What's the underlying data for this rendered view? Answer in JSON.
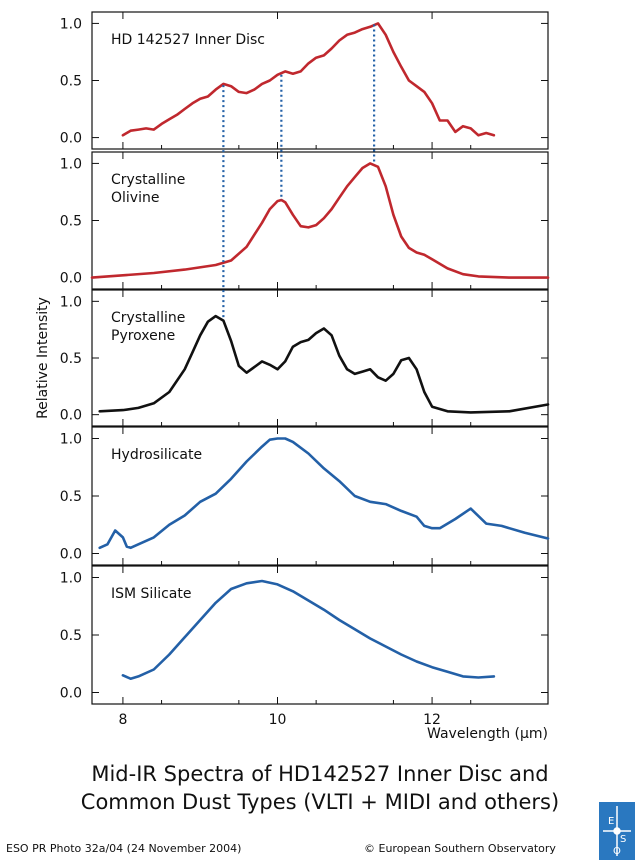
{
  "chart_data": {
    "type": "line",
    "ylabel": "Relative Intensity",
    "xlabel": "Wavelength (µm)",
    "xlim": [
      7.6,
      13.5
    ],
    "x_ticks": [
      "8",
      "10",
      "12"
    ],
    "y_ticks": [
      "0.0",
      "0.5",
      "1.0"
    ],
    "grid": false,
    "panels": [
      {
        "title": "HD 142527 Inner Disc",
        "color": "#c0282e",
        "ylim": [
          -0.1,
          1.1
        ],
        "x": [
          8.0,
          8.1,
          8.2,
          8.3,
          8.4,
          8.5,
          8.6,
          8.7,
          8.8,
          8.9,
          9.0,
          9.1,
          9.2,
          9.3,
          9.4,
          9.5,
          9.6,
          9.7,
          9.8,
          9.9,
          10.0,
          10.1,
          10.2,
          10.3,
          10.4,
          10.5,
          10.6,
          10.7,
          10.8,
          10.9,
          11.0,
          11.1,
          11.2,
          11.3,
          11.4,
          11.5,
          11.6,
          11.7,
          11.8,
          11.9,
          12.0,
          12.1,
          12.2,
          12.3,
          12.4,
          12.5,
          12.6,
          12.7,
          12.8
        ],
        "y": [
          0.02,
          0.06,
          0.07,
          0.08,
          0.07,
          0.12,
          0.16,
          0.2,
          0.25,
          0.3,
          0.34,
          0.36,
          0.42,
          0.47,
          0.45,
          0.4,
          0.39,
          0.42,
          0.47,
          0.5,
          0.55,
          0.58,
          0.56,
          0.58,
          0.65,
          0.7,
          0.72,
          0.78,
          0.85,
          0.9,
          0.92,
          0.95,
          0.97,
          1.0,
          0.9,
          0.75,
          0.62,
          0.5,
          0.45,
          0.4,
          0.3,
          0.15,
          0.15,
          0.05,
          0.1,
          0.08,
          0.02,
          0.04,
          0.02
        ]
      },
      {
        "title_lines": [
          "Crystalline",
          "Olivine"
        ],
        "color": "#c0282e",
        "ylim": [
          -0.1,
          1.1
        ],
        "x": [
          7.6,
          8.0,
          8.4,
          8.8,
          9.2,
          9.4,
          9.6,
          9.8,
          9.9,
          10.0,
          10.05,
          10.1,
          10.2,
          10.3,
          10.4,
          10.5,
          10.6,
          10.7,
          10.8,
          10.9,
          11.0,
          11.1,
          11.2,
          11.3,
          11.4,
          11.5,
          11.6,
          11.7,
          11.8,
          11.9,
          12.0,
          12.2,
          12.4,
          12.6,
          13.0,
          13.5
        ],
        "y": [
          0.0,
          0.02,
          0.04,
          0.07,
          0.11,
          0.15,
          0.27,
          0.48,
          0.6,
          0.67,
          0.68,
          0.66,
          0.55,
          0.45,
          0.44,
          0.46,
          0.52,
          0.6,
          0.7,
          0.8,
          0.88,
          0.96,
          1.0,
          0.97,
          0.8,
          0.55,
          0.36,
          0.26,
          0.22,
          0.2,
          0.16,
          0.08,
          0.03,
          0.01,
          0.0,
          0.0
        ]
      },
      {
        "title_lines": [
          "Crystalline",
          "Pyroxene"
        ],
        "color": "#111111",
        "ylim": [
          -0.1,
          1.1
        ],
        "x": [
          7.7,
          8.0,
          8.2,
          8.4,
          8.6,
          8.8,
          8.9,
          9.0,
          9.1,
          9.2,
          9.3,
          9.4,
          9.5,
          9.6,
          9.7,
          9.8,
          9.9,
          10.0,
          10.1,
          10.2,
          10.3,
          10.4,
          10.5,
          10.6,
          10.7,
          10.8,
          10.9,
          11.0,
          11.1,
          11.2,
          11.3,
          11.4,
          11.5,
          11.6,
          11.7,
          11.8,
          11.9,
          12.0,
          12.2,
          12.5,
          13.0,
          13.5
        ],
        "y": [
          0.03,
          0.04,
          0.06,
          0.1,
          0.2,
          0.4,
          0.55,
          0.7,
          0.82,
          0.87,
          0.83,
          0.65,
          0.43,
          0.37,
          0.42,
          0.47,
          0.44,
          0.4,
          0.47,
          0.6,
          0.64,
          0.66,
          0.72,
          0.76,
          0.7,
          0.52,
          0.4,
          0.36,
          0.38,
          0.4,
          0.33,
          0.3,
          0.36,
          0.48,
          0.5,
          0.4,
          0.2,
          0.07,
          0.03,
          0.02,
          0.03,
          0.09
        ]
      },
      {
        "title": "Hydrosilicate",
        "color": "#2360a7",
        "ylim": [
          -0.1,
          1.1
        ],
        "x": [
          7.7,
          7.8,
          7.9,
          8.0,
          8.05,
          8.1,
          8.2,
          8.4,
          8.6,
          8.8,
          9.0,
          9.2,
          9.4,
          9.6,
          9.8,
          9.9,
          10.0,
          10.1,
          10.2,
          10.4,
          10.6,
          10.8,
          11.0,
          11.2,
          11.4,
          11.6,
          11.8,
          11.9,
          12.0,
          12.1,
          12.3,
          12.5,
          12.7,
          12.9,
          13.2,
          13.5
        ],
        "y": [
          0.05,
          0.08,
          0.2,
          0.14,
          0.06,
          0.05,
          0.08,
          0.14,
          0.25,
          0.33,
          0.45,
          0.52,
          0.65,
          0.8,
          0.93,
          0.99,
          1.0,
          1.0,
          0.97,
          0.87,
          0.74,
          0.63,
          0.5,
          0.45,
          0.43,
          0.37,
          0.32,
          0.24,
          0.22,
          0.22,
          0.3,
          0.39,
          0.26,
          0.24,
          0.18,
          0.13
        ]
      },
      {
        "title": "ISM Silicate",
        "color": "#2360a7",
        "ylim": [
          -0.1,
          1.1
        ],
        "x": [
          8.0,
          8.1,
          8.2,
          8.4,
          8.6,
          8.8,
          9.0,
          9.2,
          9.4,
          9.6,
          9.8,
          10.0,
          10.2,
          10.4,
          10.6,
          10.8,
          11.0,
          11.2,
          11.4,
          11.6,
          11.8,
          12.0,
          12.2,
          12.4,
          12.6,
          12.8
        ],
        "y": [
          0.15,
          0.12,
          0.14,
          0.2,
          0.33,
          0.48,
          0.63,
          0.78,
          0.9,
          0.95,
          0.97,
          0.94,
          0.88,
          0.8,
          0.72,
          0.63,
          0.55,
          0.47,
          0.4,
          0.33,
          0.27,
          0.22,
          0.18,
          0.14,
          0.13,
          0.14
        ]
      }
    ],
    "marker_lines": [
      {
        "x": 9.3,
        "from_panel": 0,
        "to_panel": 2,
        "y_from": 0.46,
        "y_to": 0.85
      },
      {
        "x": 10.05,
        "from_panel": 0,
        "to_panel": 1,
        "y_from": 0.55,
        "y_to": 0.68
      },
      {
        "x": 11.25,
        "from_panel": 0,
        "to_panel": 1,
        "y_from": 0.99,
        "y_to": 1.0
      }
    ],
    "marker_color": "#2360a7"
  },
  "caption": {
    "line1": "Mid-IR  Spectra of HD142527 Inner Disc and",
    "line2": "Common Dust Types (VLTI + MIDI and others)"
  },
  "footer": {
    "left": "ESO PR Photo 32a/04 (24 November 2004)",
    "right": "© European Southern Observatory"
  },
  "logo": {
    "text": "ESO",
    "color": "#2a78c0",
    "icon": "eso-logo"
  }
}
